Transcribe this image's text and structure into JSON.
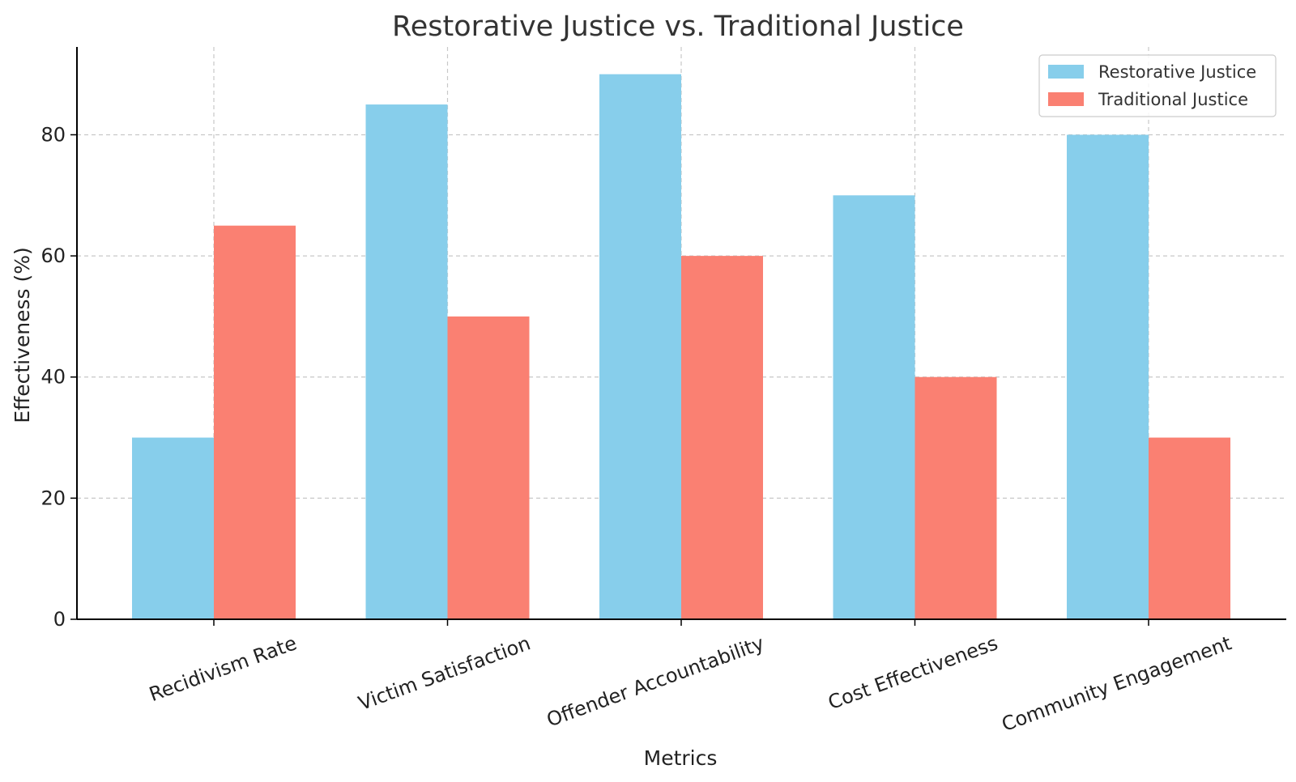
{
  "chart_data": {
    "type": "bar",
    "title": "Restorative Justice vs. Traditional Justice",
    "xlabel": "Metrics",
    "ylabel": "Effectiveness (%)",
    "categories": [
      "Recidivism Rate",
      "Victim Satisfaction",
      "Offender Accountability",
      "Cost Effectiveness",
      "Community Engagement"
    ],
    "series": [
      {
        "name": "Restorative Justice",
        "values": [
          30,
          85,
          90,
          70,
          80
        ],
        "color": "#87ceeb"
      },
      {
        "name": "Traditional Justice",
        "values": [
          65,
          50,
          60,
          40,
          30
        ],
        "color": "#fa8072"
      }
    ],
    "ylim": [
      0,
      94.5
    ],
    "yticks": [
      0,
      20,
      40,
      60,
      80
    ],
    "grid": true,
    "legend_position": "top-right"
  }
}
